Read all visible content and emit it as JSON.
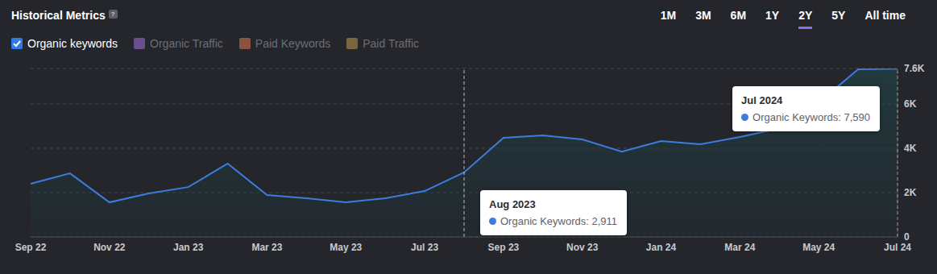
{
  "header": {
    "title": "Historical Metrics",
    "help_icon": "?",
    "periods": [
      "1M",
      "3M",
      "6M",
      "1Y",
      "2Y",
      "5Y",
      "All time"
    ],
    "selected_period": "2Y",
    "metrics": [
      {
        "name": "Organic keywords",
        "color": "#2f7be6",
        "checked": true
      },
      {
        "name": "Organic Traffic",
        "color": "#6a4f8f",
        "checked": false
      },
      {
        "name": "Paid Keywords",
        "color": "#8a5240",
        "checked": false
      },
      {
        "name": "Paid Traffic",
        "color": "#7a6540",
        "checked": false
      }
    ]
  },
  "chart_data": {
    "type": "area",
    "categories": [
      "Sep 22",
      null,
      "Nov 22",
      null,
      "Jan 23",
      null,
      "Mar 23",
      null,
      "May 23",
      null,
      "Jul 23",
      null,
      "Sep 23",
      null,
      "Nov 23",
      null,
      "Jan 24",
      null,
      "Mar 24",
      null,
      "May 24",
      null,
      "Jul 24"
    ],
    "values": [
      2400,
      2870,
      1560,
      1960,
      2250,
      3310,
      1890,
      1745,
      1560,
      1745,
      2070,
      2911,
      4470,
      4580,
      4400,
      3850,
      4330,
      4180,
      4510,
      4900,
      6070,
      7560,
      7590
    ],
    "color": "#3b7ddd",
    "ylim": [
      0,
      7600
    ],
    "yticks": [
      0,
      {
        "value": 2000,
        "label": "2K"
      },
      {
        "value": 4000,
        "label": "4K"
      },
      {
        "value": 6000,
        "label": "6K"
      },
      {
        "value": 7600,
        "label": "7.6K"
      }
    ],
    "grid": true,
    "annotations": [
      {
        "title": "Aug 2023",
        "text": "Organic Keywords: 2,911",
        "value": 2911
      },
      {
        "title": "Jul 2024",
        "text": "Organic Keywords: 7,590",
        "value": 7590
      }
    ]
  }
}
